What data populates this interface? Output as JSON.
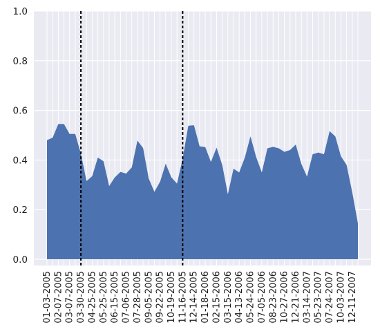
{
  "chart_data": {
    "type": "area",
    "title": "",
    "xlabel": "",
    "ylabel": "",
    "ylim": [
      -0.025,
      1.0
    ],
    "yticks": [
      0.0,
      0.2,
      0.4,
      0.6,
      0.8,
      1.0
    ],
    "ytick_labels": [
      "0.0",
      "0.2",
      "0.4",
      "0.6",
      "0.8",
      "1.0"
    ],
    "grid": true,
    "colors": {
      "fill": "#4c72b0",
      "background": "#eaeaf2",
      "grid": "#ffffff",
      "vline": "#000000"
    },
    "x": [
      "01-03-2005",
      "01-17-2005",
      "02-07-2005",
      "02-22-2005",
      "03-07-2005",
      "03-18-2005",
      "03-30-2005",
      "04-12-2005",
      "04-25-2005",
      "05-10-2005",
      "05-25-2005",
      "06-01-2005",
      "06-15-2005",
      "06-23-2005",
      "07-06-2005",
      "07-15-2005",
      "07-28-2005",
      "08-10-2005",
      "09-05-2005",
      "09-13-2005",
      "09-22-2005",
      "10-05-2005",
      "10-19-2005",
      "11-01-2005",
      "11-16-2005",
      "11-30-2005",
      "12-14-2005",
      "01-04-2006",
      "01-18-2006",
      "02-01-2006",
      "02-15-2006",
      "03-01-2006",
      "03-15-2006",
      "03-29-2006",
      "04-13-2006",
      "05-04-2006",
      "05-24-2006",
      "06-14-2006",
      "07-05-2006",
      "08-02-2006",
      "08-23-2006",
      "09-20-2006",
      "10-27-2006",
      "11-22-2006",
      "12-21-2006",
      "02-14-2007",
      "03-14-2007",
      "04-18-2007",
      "05-23-2007",
      "06-20-2007",
      "07-24-2007",
      "08-29-2007",
      "10-03-2007",
      "11-07-2007",
      "12-11-2007",
      "12-31-2007"
    ],
    "series": [
      {
        "values": [
          0.48,
          0.49,
          0.545,
          0.545,
          0.505,
          0.505,
          0.425,
          0.315,
          0.335,
          0.41,
          0.395,
          0.295,
          0.33,
          0.352,
          0.345,
          0.37,
          0.478,
          0.448,
          0.325,
          0.272,
          0.312,
          0.385,
          0.33,
          0.305,
          0.405,
          0.538,
          0.54,
          0.455,
          0.452,
          0.392,
          0.45,
          0.38,
          0.262,
          0.365,
          0.35,
          0.41,
          0.495,
          0.412,
          0.35,
          0.447,
          0.453,
          0.447,
          0.433,
          0.44,
          0.462,
          0.384,
          0.333,
          0.423,
          0.43,
          0.423,
          0.516,
          0.495,
          0.415,
          0.38,
          0.27,
          0.145
        ]
      }
    ],
    "xtick_labels": [
      "01-03-2005",
      "02-07-2005",
      "03-07-2005",
      "03-30-2005",
      "04-25-2005",
      "05-25-2005",
      "06-15-2005",
      "07-06-2005",
      "07-28-2005",
      "09-05-2005",
      "09-22-2005",
      "10-19-2005",
      "11-16-2005",
      "12-14-2005",
      "01-18-2006",
      "02-15-2006",
      "03-15-2006",
      "04-13-2006",
      "05-24-2006",
      "07-05-2006",
      "08-23-2006",
      "10-27-2006",
      "12-21-2006",
      "03-14-2007",
      "05-23-2007",
      "07-24-2007",
      "10-03-2007",
      "12-11-2007"
    ],
    "vlines": [
      "03-30-2005",
      "11-16-2005"
    ]
  }
}
